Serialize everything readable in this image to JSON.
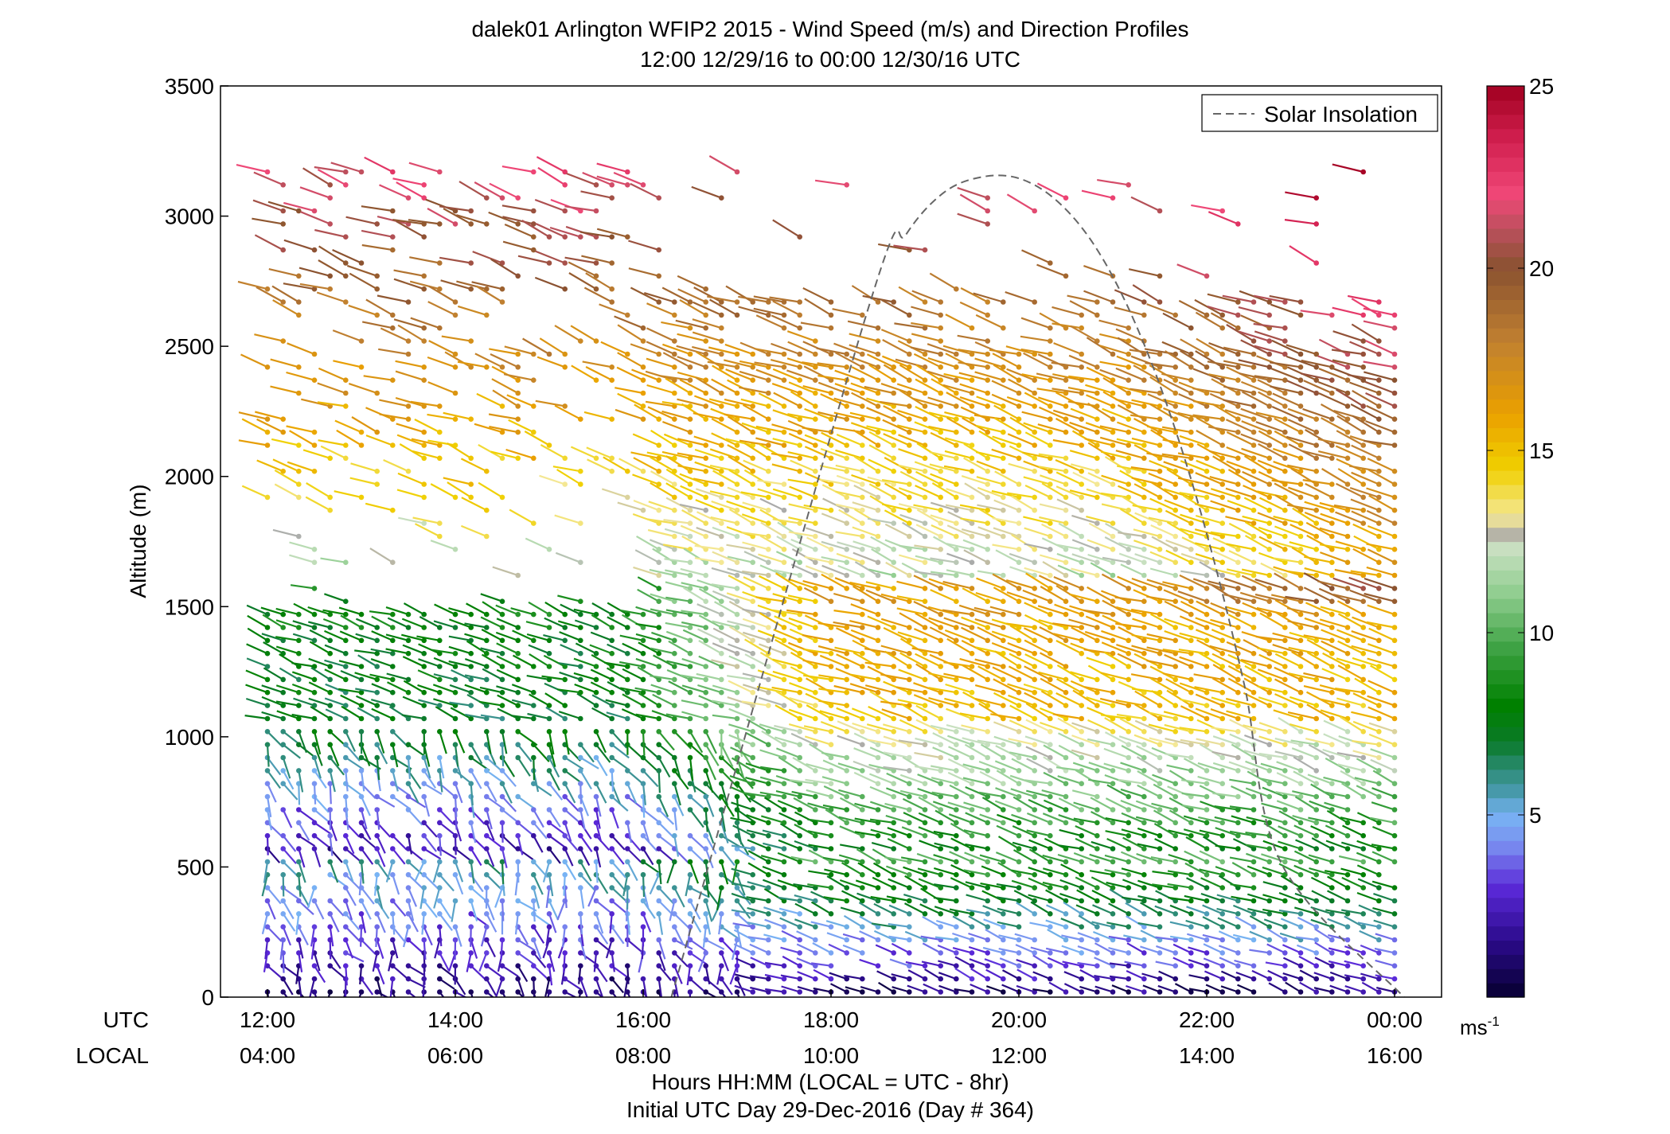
{
  "chart_data": {
    "type": "wind-barb profile",
    "title": "dalek01 Arlington WFIP2 2015 - Wind Speed (m/s) and Direction Profiles",
    "subtitle": "12:00 12/29/16 to 00:00 12/30/16  UTC",
    "ylabel": "Altitude (m)",
    "ylim": [
      0,
      3500
    ],
    "yticks": [
      "0",
      "500",
      "1000",
      "1500",
      "2000",
      "2500",
      "3000",
      "3500"
    ],
    "xlim_utc_hours": [
      11.5,
      24.5
    ],
    "utc_row_label": "UTC",
    "local_row_label": "LOCAL",
    "utc_ticks": [
      {
        "hour": 12,
        "label": "12:00"
      },
      {
        "hour": 14,
        "label": "14:00"
      },
      {
        "hour": 16,
        "label": "16:00"
      },
      {
        "hour": 18,
        "label": "18:00"
      },
      {
        "hour": 20,
        "label": "20:00"
      },
      {
        "hour": 22,
        "label": "22:00"
      },
      {
        "hour": 24,
        "label": "00:00"
      }
    ],
    "local_ticks": [
      "04:00",
      "06:00",
      "08:00",
      "10:00",
      "12:00",
      "14:00",
      "16:00"
    ],
    "xlabel": "Hours HH:MM  (LOCAL = UTC - 8hr)",
    "xlabel2": "Initial UTC Day 29-Dec-2016 (Day # 364)",
    "legend": {
      "position": "top-right",
      "entry": "Solar Insolation"
    },
    "solar_insolation_curve": {
      "hours": [
        18.4,
        18.8,
        19.2,
        19.6,
        20.0,
        20.4,
        20.8,
        21.2,
        21.6,
        22.0,
        22.4,
        22.8
      ],
      "altitudes": [
        2650,
        2930,
        3090,
        3150,
        3145,
        3060,
        2890,
        2620,
        2250,
        1780,
        1200,
        510
      ],
      "extremes": {
        "start_hour": 16.3,
        "end_hour": 24.1
      }
    },
    "colorbar": {
      "range": [
        0,
        25
      ],
      "ticks": [
        "5",
        "10",
        "15",
        "20",
        "25"
      ],
      "units_base": "ms",
      "units_exp": "-1",
      "stops": [
        {
          "v": 0.0,
          "c": "#060030"
        },
        {
          "v": 1.5,
          "c": "#2a0a88"
        },
        {
          "v": 3.0,
          "c": "#5a28d8"
        },
        {
          "v": 4.2,
          "c": "#7a8ef0"
        },
        {
          "v": 5.0,
          "c": "#78b4f4"
        },
        {
          "v": 5.6,
          "c": "#4a9ab0"
        },
        {
          "v": 6.3,
          "c": "#2a8a70"
        },
        {
          "v": 7.0,
          "c": "#0a7a28"
        },
        {
          "v": 8.0,
          "c": "#008000"
        },
        {
          "v": 9.5,
          "c": "#3aa040"
        },
        {
          "v": 11.0,
          "c": "#8ccc8c"
        },
        {
          "v": 12.3,
          "c": "#c8e0c0"
        },
        {
          "v": 12.6,
          "c": "#aaaaaa"
        },
        {
          "v": 13.2,
          "c": "#f4e896"
        },
        {
          "v": 14.5,
          "c": "#f0d000"
        },
        {
          "v": 16.0,
          "c": "#eaa000"
        },
        {
          "v": 18.0,
          "c": "#c08030"
        },
        {
          "v": 20.0,
          "c": "#8a5230"
        },
        {
          "v": 21.0,
          "c": "#b8505a"
        },
        {
          "v": 22.0,
          "c": "#f04878"
        },
        {
          "v": 23.5,
          "c": "#d22050"
        },
        {
          "v": 25.0,
          "c": "#a00020"
        }
      ]
    },
    "profile_times_utc": "every 10 min from 12:00 to 24:00",
    "range_gates_m": "every 50 m from 20 to 3200"
  }
}
